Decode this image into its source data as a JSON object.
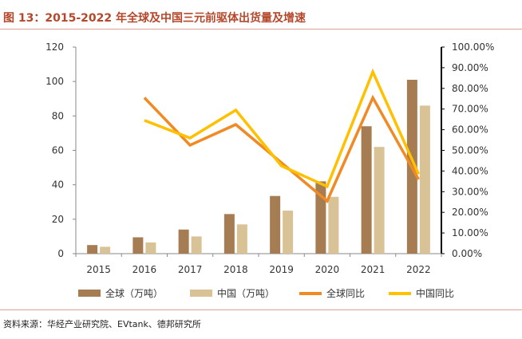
{
  "title": "图 13：2015-2022 年全球及中国三元前驱体出货量及增速",
  "source": "资料来源：华经产业研究院、EVtank、德邦研究所",
  "chart_data": {
    "type": "bar",
    "categories": [
      "2015",
      "2016",
      "2017",
      "2018",
      "2019",
      "2020",
      "2021",
      "2022"
    ],
    "bar_series": [
      {
        "name": "全球（万吨）",
        "color": "#a67c52",
        "values": [
          5,
          9.5,
          14,
          23,
          33.5,
          42,
          74,
          101
        ]
      },
      {
        "name": "中国（万吨）",
        "color": "#d9c396",
        "values": [
          4,
          6.5,
          10,
          17,
          25,
          33,
          62,
          86
        ]
      }
    ],
    "line_series": [
      {
        "name": "全球同比",
        "color": "#f08a24",
        "values": [
          null,
          75.5,
          52.5,
          62.5,
          null,
          25.5,
          75.5,
          36
        ]
      },
      {
        "name": "中国同比",
        "color": "#ffc000",
        "values": [
          null,
          64.5,
          56,
          69.5,
          42.5,
          32.5,
          88,
          38.5
        ]
      }
    ],
    "left_axis": {
      "min": 0,
      "max": 120,
      "ticks": [
        0,
        20,
        40,
        60,
        80,
        100,
        120
      ]
    },
    "right_axis": {
      "min": 0,
      "max": 100,
      "ticks": [
        "0.00%",
        "10.00%",
        "20.00%",
        "30.00%",
        "40.00%",
        "50.00%",
        "60.00%",
        "70.00%",
        "80.00%",
        "90.00%",
        "100.00%"
      ]
    },
    "legend_position": "bottom"
  }
}
